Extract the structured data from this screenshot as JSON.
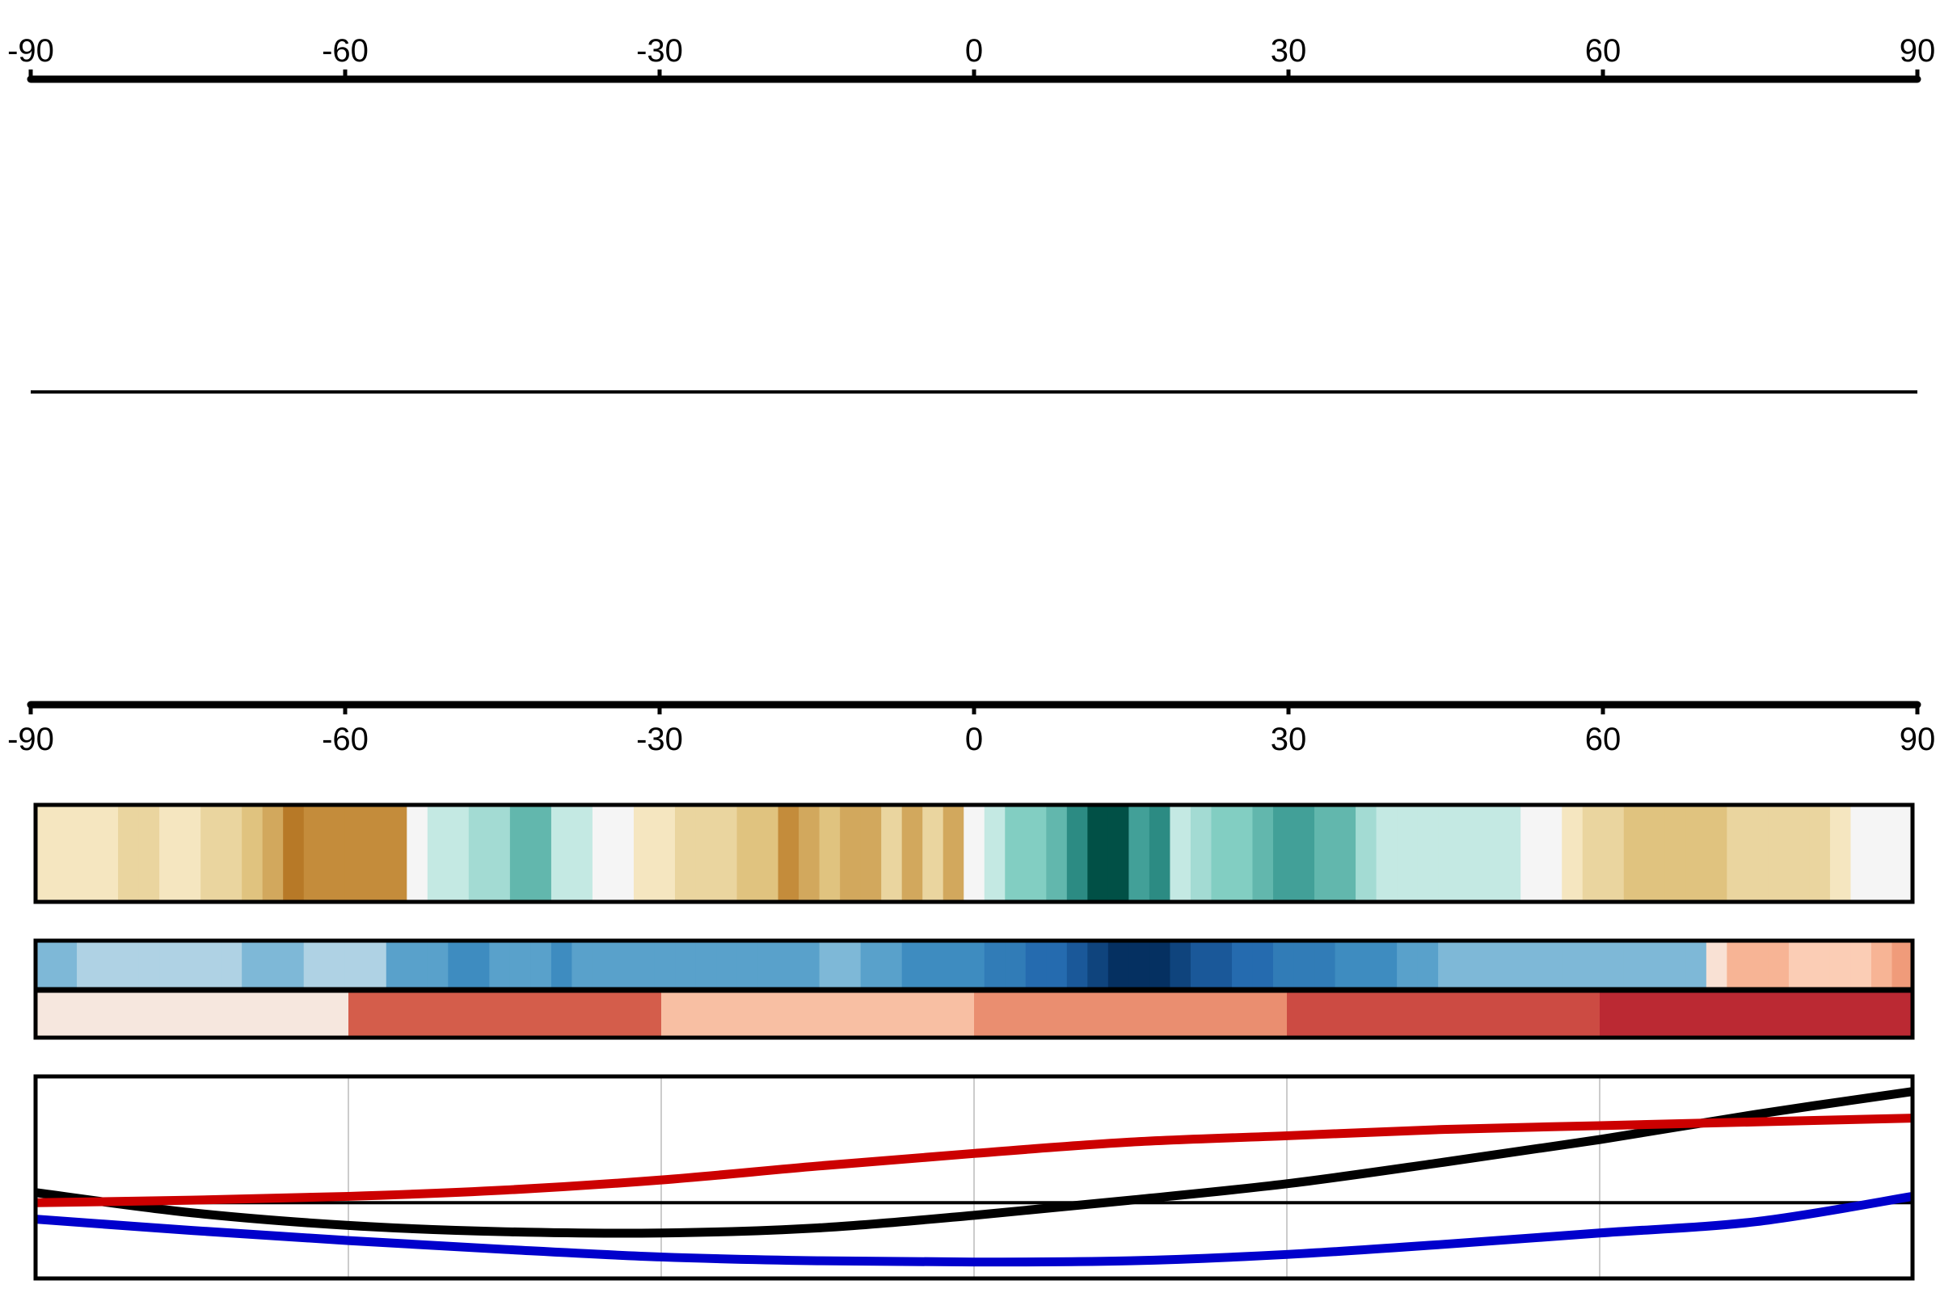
{
  "chart_data": [
    {
      "type": "line",
      "panel": "latitude-axis-frame",
      "title": "",
      "xlabel": "",
      "ylabel": "",
      "xlim": [
        -90,
        90
      ],
      "x_ticks": [
        "-90",
        "-60",
        "-30",
        "0",
        "30",
        "60",
        "90"
      ],
      "x_tick_values": [
        -90,
        -60,
        -30,
        0,
        30,
        60,
        90
      ],
      "axes_position": [
        "top",
        "bottom"
      ],
      "reference_line": "zero",
      "series": []
    },
    {
      "type": "heatmap",
      "panel": "brown-teal-strip",
      "x_start": -90,
      "x_step": 2,
      "values": [
        -1,
        -1,
        -1,
        -1,
        -2,
        -2,
        -1,
        -1,
        -2,
        -2,
        -3,
        -4,
        -6,
        -5,
        -5,
        -5,
        -5,
        -5,
        0,
        1,
        1,
        2,
        2,
        4,
        4,
        1,
        1,
        0,
        0,
        -1,
        -1,
        -2,
        -2,
        -2,
        -3,
        -3,
        -5,
        -4,
        -3,
        -4,
        -4,
        -2,
        -4,
        -2,
        -4,
        0,
        1,
        3,
        3,
        4,
        6,
        9,
        9,
        5,
        6,
        1,
        2,
        3,
        3,
        4,
        5,
        5,
        4,
        4,
        2,
        1,
        1,
        1,
        1,
        1,
        1,
        1,
        0,
        0,
        -1,
        -2,
        -2,
        -3,
        -3,
        -3,
        -3,
        -3,
        -2,
        -2,
        -2,
        -2,
        -2,
        -1,
        0,
        0,
        0
      ],
      "value_range": [
        -9,
        9
      ]
    },
    {
      "type": "heatmap",
      "panel": "blue-red-strip",
      "x_start": -90,
      "x_step": 2,
      "values": [
        -2,
        -2,
        -1,
        -1,
        -1,
        -1,
        -1,
        -1,
        -1,
        -1,
        -2,
        -2,
        -2,
        -1,
        -1,
        -1,
        -1,
        -3,
        -3,
        -3,
        -4,
        -4,
        -3,
        -3,
        -3,
        -4,
        -3,
        -3,
        -3,
        -3,
        -3,
        -3,
        -3,
        -3,
        -3,
        -3,
        -3,
        -3,
        -2,
        -2,
        -3,
        -3,
        -4,
        -4,
        -4,
        -4,
        -5,
        -5,
        -6,
        -6,
        -7,
        -8,
        -9,
        -9,
        -9,
        -8,
        -7,
        -7,
        -6,
        -6,
        -5,
        -5,
        -5,
        -4,
        -4,
        -4,
        -3,
        -3,
        -2,
        -2,
        -2,
        -2,
        -2,
        -2,
        -2,
        -2,
        -2,
        -2,
        -2,
        -2,
        -2,
        1,
        3,
        3,
        3,
        2,
        2,
        2,
        2,
        3,
        4
      ],
      "value_range": [
        -9,
        9
      ]
    },
    {
      "type": "heatmap",
      "panel": "band-strip",
      "categories": [
        "-90 to -60",
        "-60 to -30",
        "-30 to 0",
        "0 to 30",
        "30 to 60",
        "60 to 90"
      ],
      "values": [
        0.5,
        5,
        2,
        3.5,
        5.5,
        6.5
      ],
      "value_range": [
        -7,
        7
      ]
    },
    {
      "type": "line",
      "panel": "line-panel",
      "title": "",
      "xlabel": "",
      "ylabel": "",
      "xlim": [
        -90,
        90
      ],
      "ylim": [
        -0.6,
        1.0
      ],
      "grid": true,
      "x_grid": [
        -60,
        -30,
        0,
        30,
        60
      ],
      "reference_line": 0,
      "series": [
        {
          "color": "#000000",
          "x": [
            -90,
            -75,
            -60,
            -45,
            -30,
            -15,
            0,
            15,
            30,
            45,
            60,
            75,
            90
          ],
          "y": [
            0.08,
            -0.08,
            -0.18,
            -0.23,
            -0.24,
            -0.2,
            -0.1,
            0.02,
            0.15,
            0.32,
            0.5,
            0.7,
            0.88
          ]
        },
        {
          "color": "#cc0000",
          "x": [
            -90,
            -75,
            -60,
            -45,
            -30,
            -15,
            0,
            15,
            30,
            45,
            60,
            75,
            90
          ],
          "y": [
            0.0,
            0.02,
            0.05,
            0.1,
            0.18,
            0.29,
            0.39,
            0.48,
            0.53,
            0.58,
            0.61,
            0.64,
            0.67
          ]
        },
        {
          "color": "#0000cc",
          "x": [
            -90,
            -75,
            -60,
            -45,
            -30,
            -15,
            0,
            15,
            30,
            45,
            60,
            75,
            90
          ],
          "y": [
            -0.13,
            -0.22,
            -0.3,
            -0.37,
            -0.43,
            -0.46,
            -0.47,
            -0.46,
            -0.41,
            -0.33,
            -0.24,
            -0.15,
            0.05
          ]
        }
      ]
    }
  ]
}
